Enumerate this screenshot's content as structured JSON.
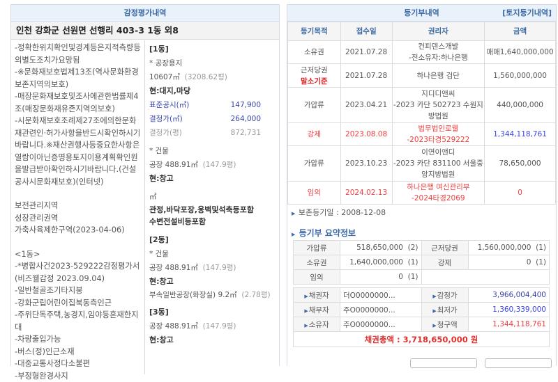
{
  "appraisal": {
    "title": "감정평가내역",
    "address": "인천 강화군 선원면 선행리 403-3 1동 외8",
    "notes": [
      "-정확한위치확인및경계등은지적측량등의별도조치가요망됨",
      "-※문화재보호법제13조(역사문화환경보존지역의보호)",
      "-매장문화재보호및조사에관한법률제4조(매장문화재유존지역의보호)",
      "-시문화재보호조례제27조에의한문화재관련인·허가사항을반드시확인하시기바랍니다.※재산권행사등중요한사항은열람이아닌증명용토지이용계획확인원을발급받아확인하시기바랍니다.(건설공사시문화재보호)(인터넷)",
      "",
      "보전관리지역",
      "성장관리권역",
      "가축사육제한구역(2023-04-06)",
      "",
      "<1동>",
      "-*병합사건2023-529222감정평가서(비즈웰감정 2023.09.04)",
      "-일반철골조기타지붕",
      "-강화군립어린이집북동측인근",
      "-주위단독주택,농경지,임야등혼재한지대",
      "-차량출입가능",
      "-버스(정)인근소재",
      "-대중교통사정다소불편",
      "-부정형완경사지"
    ],
    "b1": {
      "label": "[1동]",
      "land_label": "* 공장용지",
      "land_area": "10607㎡",
      "land_pyeong": "(3208.62평)",
      "land_current": "현:대지,마당",
      "std_label": "표준공시(㎡)",
      "std_value": "147,900",
      "dec_label": "결정가(㎡)",
      "dec_value": "264,000",
      "decp_label": "결정가(평)",
      "decp_value": "872,731",
      "bld_label": "* 건물",
      "bld_area": "공장 488.91㎡",
      "bld_pyeong": "(147.9평)",
      "bld_current": "현:창고",
      "unit": "㎡",
      "extra1": "관정,바닥포장,옹벽및석축등포함",
      "extra2": "수변전설비등포함"
    },
    "b2": {
      "label": "[2동]",
      "bld_label": "* 건물",
      "bld_area": "공장 488.91㎡",
      "bld_pyeong": "(147.9평)",
      "bld_current": "현:창고",
      "annex": "부속일반공장(화장실) 9.2㎡",
      "annex_pyeong": "(2.78평)"
    },
    "b3": {
      "label": "[3동]",
      "bld_area": "공장 488.91㎡",
      "bld_pyeong": "(147.9평)",
      "bld_current": "현:창고"
    }
  },
  "registry": {
    "title": "등기부내역",
    "land_link": "[토지등기내역]",
    "headers": [
      "등기목적",
      "접수일",
      "권리자",
      "금액"
    ],
    "rows": [
      {
        "type": "소유권",
        "date": "2021.07.28",
        "holder": "컨피덴스개발",
        "holder2": "-전소유자:하나은행",
        "amount": "매매1,640,000,000"
      },
      {
        "type": "근저당권",
        "tag": "말소기준",
        "date": "2021.07.28",
        "holder": "하나은행 검단",
        "amount": "1,560,000,000"
      },
      {
        "type": "가압류",
        "date": "2023.04.21",
        "holder": "지디디앤씨",
        "holder2": "-2023 카단 502723 수원지방법원",
        "amount": "440,000,000"
      },
      {
        "type": "강제",
        "date": "2023.08.08",
        "holder": "법무법인로웰",
        "holder2": "-2023타경529222",
        "amount": "1,344,118,761"
      },
      {
        "type": "가압류",
        "date": "2023.10.23",
        "holder": "이연이앤디",
        "holder2": "-2023 카단 831100 서울중앙지방법원",
        "amount": "78,650,000"
      },
      {
        "type": "임의",
        "date": "2024.02.13",
        "holder": "하나은행 여신관리부",
        "holder2": "-2024타경2069",
        "amount": "0"
      }
    ],
    "preserve": "보존등기일 : 2008-12-08",
    "summary_title": "등기부 요약정보",
    "summary": [
      [
        "가압류",
        "518,650,000",
        "(2)",
        "근저당권",
        "1,560,000,000",
        "(1)"
      ],
      [
        "소유권",
        "1,640,000,000",
        "(1)",
        "강제",
        "0",
        "(1)"
      ],
      [
        "임의",
        "0",
        "(1)"
      ]
    ],
    "parties": [
      [
        "채권자",
        "더O0000000...",
        "감정가",
        "3,966,004,400"
      ],
      [
        "채무자",
        "주O0000000...",
        "최저가",
        "1,360,339,000"
      ],
      [
        "소유자",
        "주O0000000...",
        "청구액",
        "1,344,118,761"
      ]
    ],
    "total": "채권총액 : 3,718,650,000 원"
  },
  "colors": {
    "accent": "#3b6aa6",
    "red": "#f04040",
    "blue": "#3a44e0"
  }
}
